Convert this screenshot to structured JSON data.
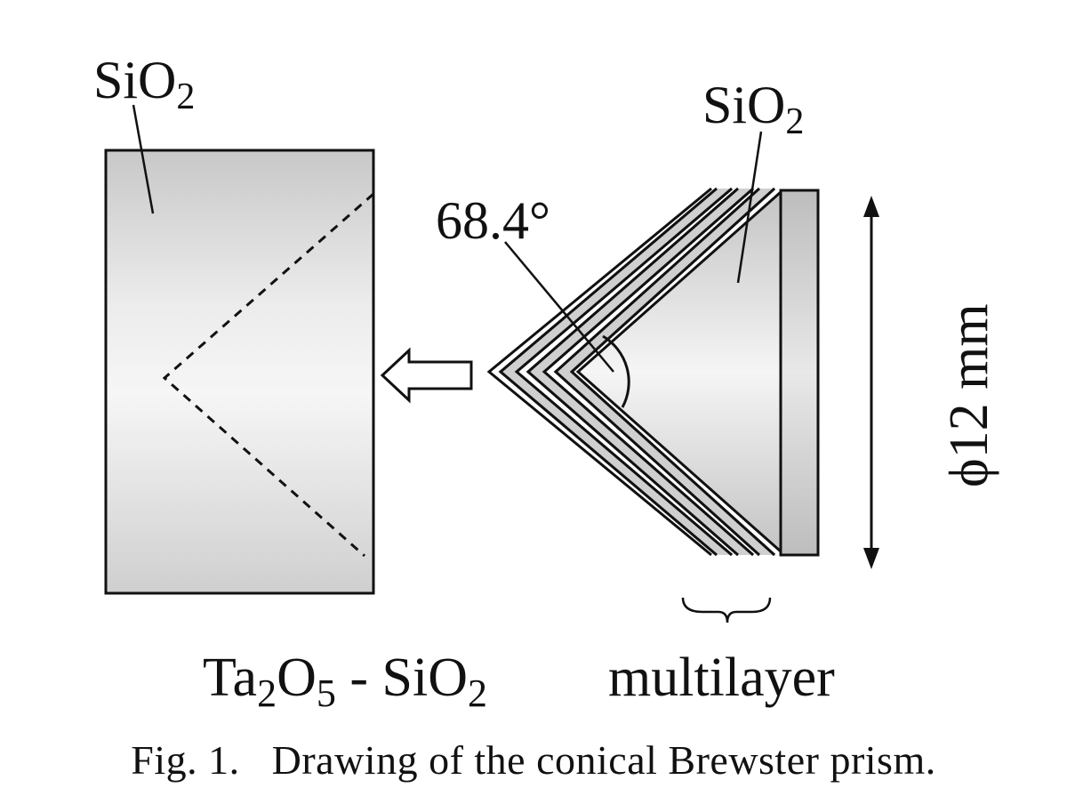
{
  "labels": {
    "left_material": "SiO",
    "left_material_sub": "2",
    "right_material": "SiO",
    "right_material_sub": "2",
    "angle": "68.4°",
    "diameter": "ϕ12 mm",
    "multilayer_a": "Ta",
    "multilayer_a_sub": "2",
    "multilayer_b": "O",
    "multilayer_b_sub": "5",
    "multilayer_sep": " - SiO",
    "multilayer_sep_sub": "2",
    "multilayer_word": "multilayer"
  },
  "caption": "Fig. 1.   Drawing of the conical Brewster prism."
}
